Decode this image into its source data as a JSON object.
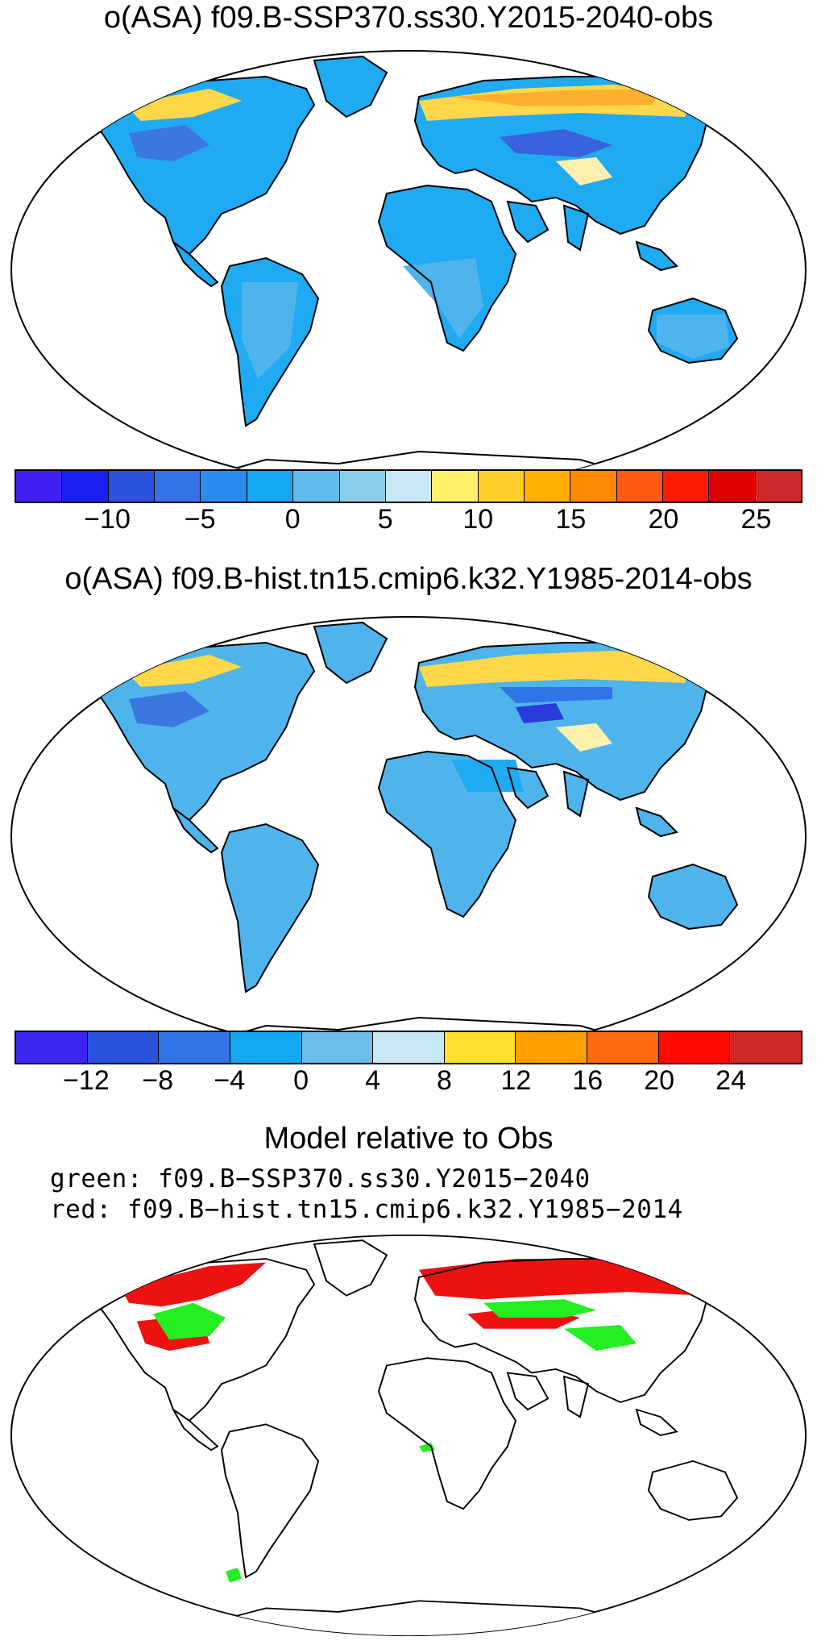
{
  "panel1": {
    "title": "o(ASA) f09.B-SSP370.ss30.Y2015-2040-obs",
    "colorbar": {
      "colors": [
        "#4020f0",
        "#1a1ef0",
        "#2a52dc",
        "#3274e8",
        "#2b8cf0",
        "#14a8f0",
        "#5fbcec",
        "#8ccdeb",
        "#c8e8f5",
        "#fff06a",
        "#ffd02a",
        "#ffb000",
        "#ff8a00",
        "#ff5a10",
        "#ff1a00",
        "#e00000",
        "#cc2a2a"
      ],
      "labels": [
        {
          "text": "−10",
          "pos": 2
        },
        {
          "text": "−5",
          "pos": 4
        },
        {
          "text": "0",
          "pos": 6
        },
        {
          "text": "5",
          "pos": 8
        },
        {
          "text": "10",
          "pos": 10
        },
        {
          "text": "15",
          "pos": 12
        },
        {
          "text": "20",
          "pos": 14
        },
        {
          "text": "25",
          "pos": 16
        }
      ]
    }
  },
  "panel2": {
    "title": "o(ASA) f09.B-hist.tn15.cmip6.k32.Y1985-2014-obs",
    "colorbar": {
      "colors": [
        "#3a26ee",
        "#2a52dc",
        "#3274e8",
        "#14a8f0",
        "#6cbdea",
        "#c8e8f5",
        "#ffe030",
        "#ffa000",
        "#ff6a10",
        "#ff0a00",
        "#d02828"
      ],
      "labels": [
        {
          "text": "−12",
          "pos": 1
        },
        {
          "text": "−8",
          "pos": 2
        },
        {
          "text": "−4",
          "pos": 3
        },
        {
          "text": "0",
          "pos": 4
        },
        {
          "text": "4",
          "pos": 5
        },
        {
          "text": "8",
          "pos": 6
        },
        {
          "text": "12",
          "pos": 7
        },
        {
          "text": "16",
          "pos": 8
        },
        {
          "text": "20",
          "pos": 9
        },
        {
          "text": "24",
          "pos": 10
        }
      ]
    }
  },
  "panel3": {
    "title": "Model relative to Obs",
    "line1": "green: f09.B−SSP370.ss30.Y2015−2040",
    "line2": "red: f09.B−hist.tn15.cmip6.k32.Y1985−2014",
    "green_color": "#22ee22",
    "red_color": "#ee1111"
  },
  "map_colors": {
    "land_base_1": "#1faaf2",
    "land_base_2": "#4fb4ec",
    "outline": "#000000"
  }
}
